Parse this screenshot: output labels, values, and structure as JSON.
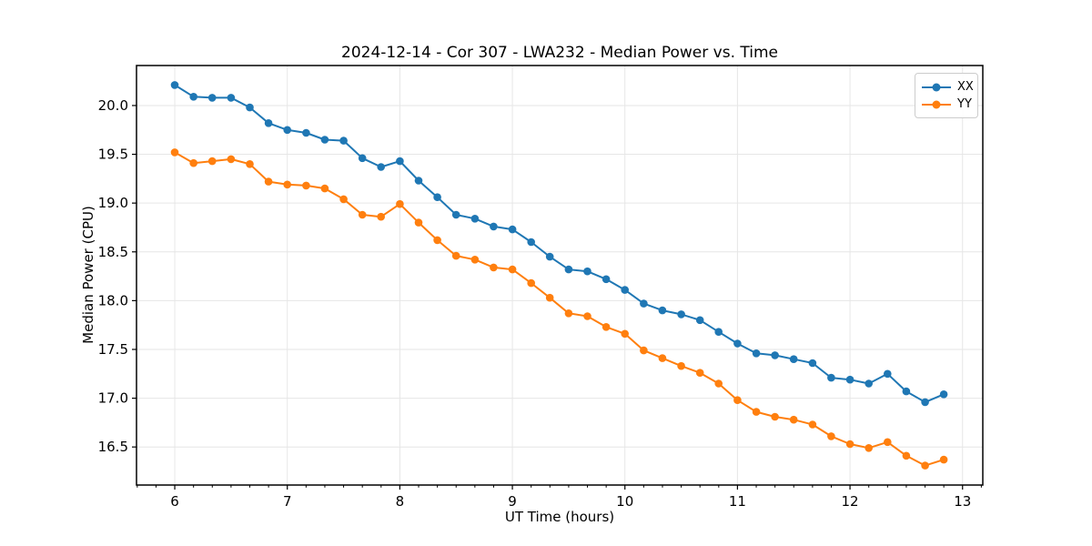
{
  "chart_data": {
    "type": "line",
    "title": "2024-12-14 - Cor 307 - LWA232 - Median Power vs. Time",
    "xlabel": "UT Time (hours)",
    "ylabel": "Median Power (CPU)",
    "xlim": [
      5.66,
      13.18
    ],
    "ylim": [
      16.11,
      20.41
    ],
    "xticks": [
      6,
      7,
      8,
      9,
      10,
      11,
      12,
      13
    ],
    "yticks": [
      16.5,
      17.0,
      17.5,
      18.0,
      18.5,
      19.0,
      19.5,
      20.0
    ],
    "x_minor_step": 0.16667,
    "grid": true,
    "legend_position": "upper right",
    "x": [
      6.0,
      6.167,
      6.333,
      6.5,
      6.667,
      6.833,
      7.0,
      7.167,
      7.333,
      7.5,
      7.667,
      7.833,
      8.0,
      8.167,
      8.333,
      8.5,
      8.667,
      8.833,
      9.0,
      9.167,
      9.333,
      9.5,
      9.667,
      9.833,
      10.0,
      10.167,
      10.333,
      10.5,
      10.667,
      10.833,
      11.0,
      11.167,
      11.333,
      11.5,
      11.667,
      11.833,
      12.0,
      12.167,
      12.333,
      12.5,
      12.667,
      12.833
    ],
    "series": [
      {
        "name": "XX",
        "color": "#1f77b4",
        "values": [
          20.21,
          20.09,
          20.08,
          20.08,
          19.98,
          19.82,
          19.75,
          19.72,
          19.65,
          19.64,
          19.46,
          19.37,
          19.43,
          19.23,
          19.06,
          18.88,
          18.84,
          18.76,
          18.73,
          18.6,
          18.45,
          18.32,
          18.3,
          18.22,
          18.11,
          17.97,
          17.9,
          17.86,
          17.8,
          17.68,
          17.56,
          17.46,
          17.44,
          17.4,
          17.36,
          17.21,
          17.19,
          17.15,
          17.25,
          17.07,
          16.96,
          17.04
        ]
      },
      {
        "name": "YY",
        "color": "#ff7f0e",
        "values": [
          19.52,
          19.41,
          19.43,
          19.45,
          19.4,
          19.22,
          19.19,
          19.18,
          19.15,
          19.04,
          18.88,
          18.86,
          18.99,
          18.8,
          18.62,
          18.46,
          18.42,
          18.34,
          18.32,
          18.18,
          18.03,
          17.87,
          17.84,
          17.73,
          17.66,
          17.49,
          17.41,
          17.33,
          17.26,
          17.15,
          16.98,
          16.86,
          16.81,
          16.78,
          16.73,
          16.61,
          16.53,
          16.49,
          16.55,
          16.41,
          16.31,
          16.37
        ]
      }
    ],
    "style": {
      "grid_color": "#e6e6e6",
      "spine_color": "#000000",
      "tick_color": "#000000",
      "background": "#ffffff"
    }
  }
}
